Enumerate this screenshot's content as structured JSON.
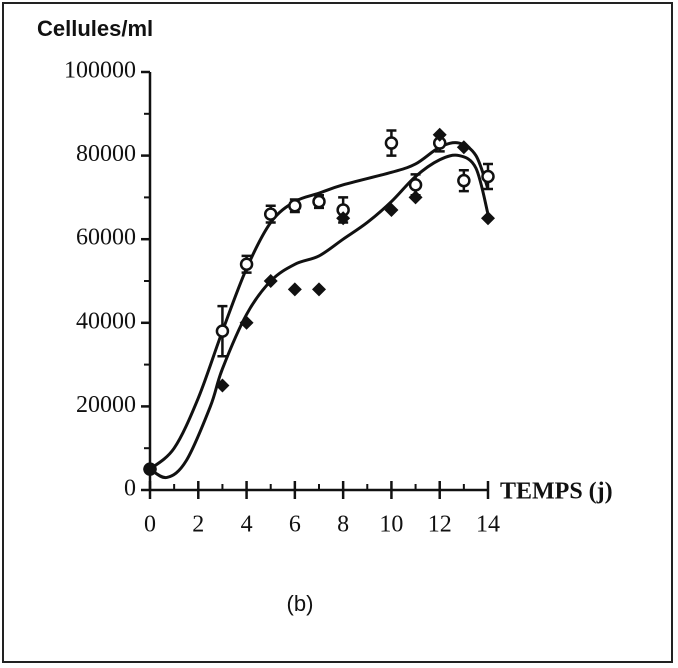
{
  "chart_data": {
    "type": "scatter",
    "y_label": "Cellules/ml",
    "x_label": "TEMPS (j)",
    "caption": "(b)",
    "xlim": [
      0,
      14
    ],
    "xticks": [
      0,
      2,
      4,
      6,
      8,
      10,
      12,
      14
    ],
    "xminorticks": [
      1,
      3,
      5,
      7,
      9,
      11,
      13
    ],
    "ylim": [
      0,
      100000
    ],
    "yticks": [
      0,
      20000,
      40000,
      60000,
      80000,
      100000
    ],
    "yminorticks": [
      10000,
      30000,
      50000,
      70000,
      90000
    ],
    "color": "#111111",
    "series": [
      {
        "marker": "open-circle",
        "color": "#111111",
        "x": [
          0,
          3,
          4,
          5,
          6,
          7,
          8,
          10,
          11,
          12,
          13,
          14
        ],
        "values": [
          5000,
          38000,
          54000,
          66000,
          68000,
          69000,
          67000,
          83000,
          73000,
          83000,
          74000,
          75000
        ],
        "errors": [
          0,
          6000,
          2000,
          2000,
          1500,
          1500,
          3000,
          3000,
          2500,
          2000,
          2500,
          3000
        ],
        "fit": {
          "x": [
            0,
            1,
            2,
            3,
            4,
            5,
            6,
            7,
            8,
            10,
            11,
            12,
            12.8,
            13.5,
            14
          ],
          "values": [
            5000,
            10000,
            22000,
            38000,
            53000,
            64000,
            69000,
            71000,
            73000,
            76000,
            78000,
            82000,
            83000,
            80000,
            72000
          ]
        }
      },
      {
        "marker": "filled-diamond",
        "color": "#111111",
        "x": [
          0,
          3,
          4,
          5,
          6,
          7,
          8,
          10,
          11,
          12,
          13,
          14
        ],
        "values": [
          5000,
          25000,
          40000,
          50000,
          48000,
          48000,
          65000,
          67000,
          70000,
          85000,
          82000,
          65000
        ],
        "fit": {
          "x": [
            0,
            0.7,
            1.5,
            2.5,
            3,
            4,
            5,
            6,
            7,
            8,
            9,
            10,
            11,
            12,
            12.8,
            13.5,
            14
          ],
          "values": [
            5000,
            3000,
            7000,
            20000,
            29000,
            42000,
            50000,
            54000,
            56000,
            60000,
            64000,
            69000,
            75000,
            79000,
            80000,
            77000,
            66000
          ]
        }
      }
    ]
  }
}
